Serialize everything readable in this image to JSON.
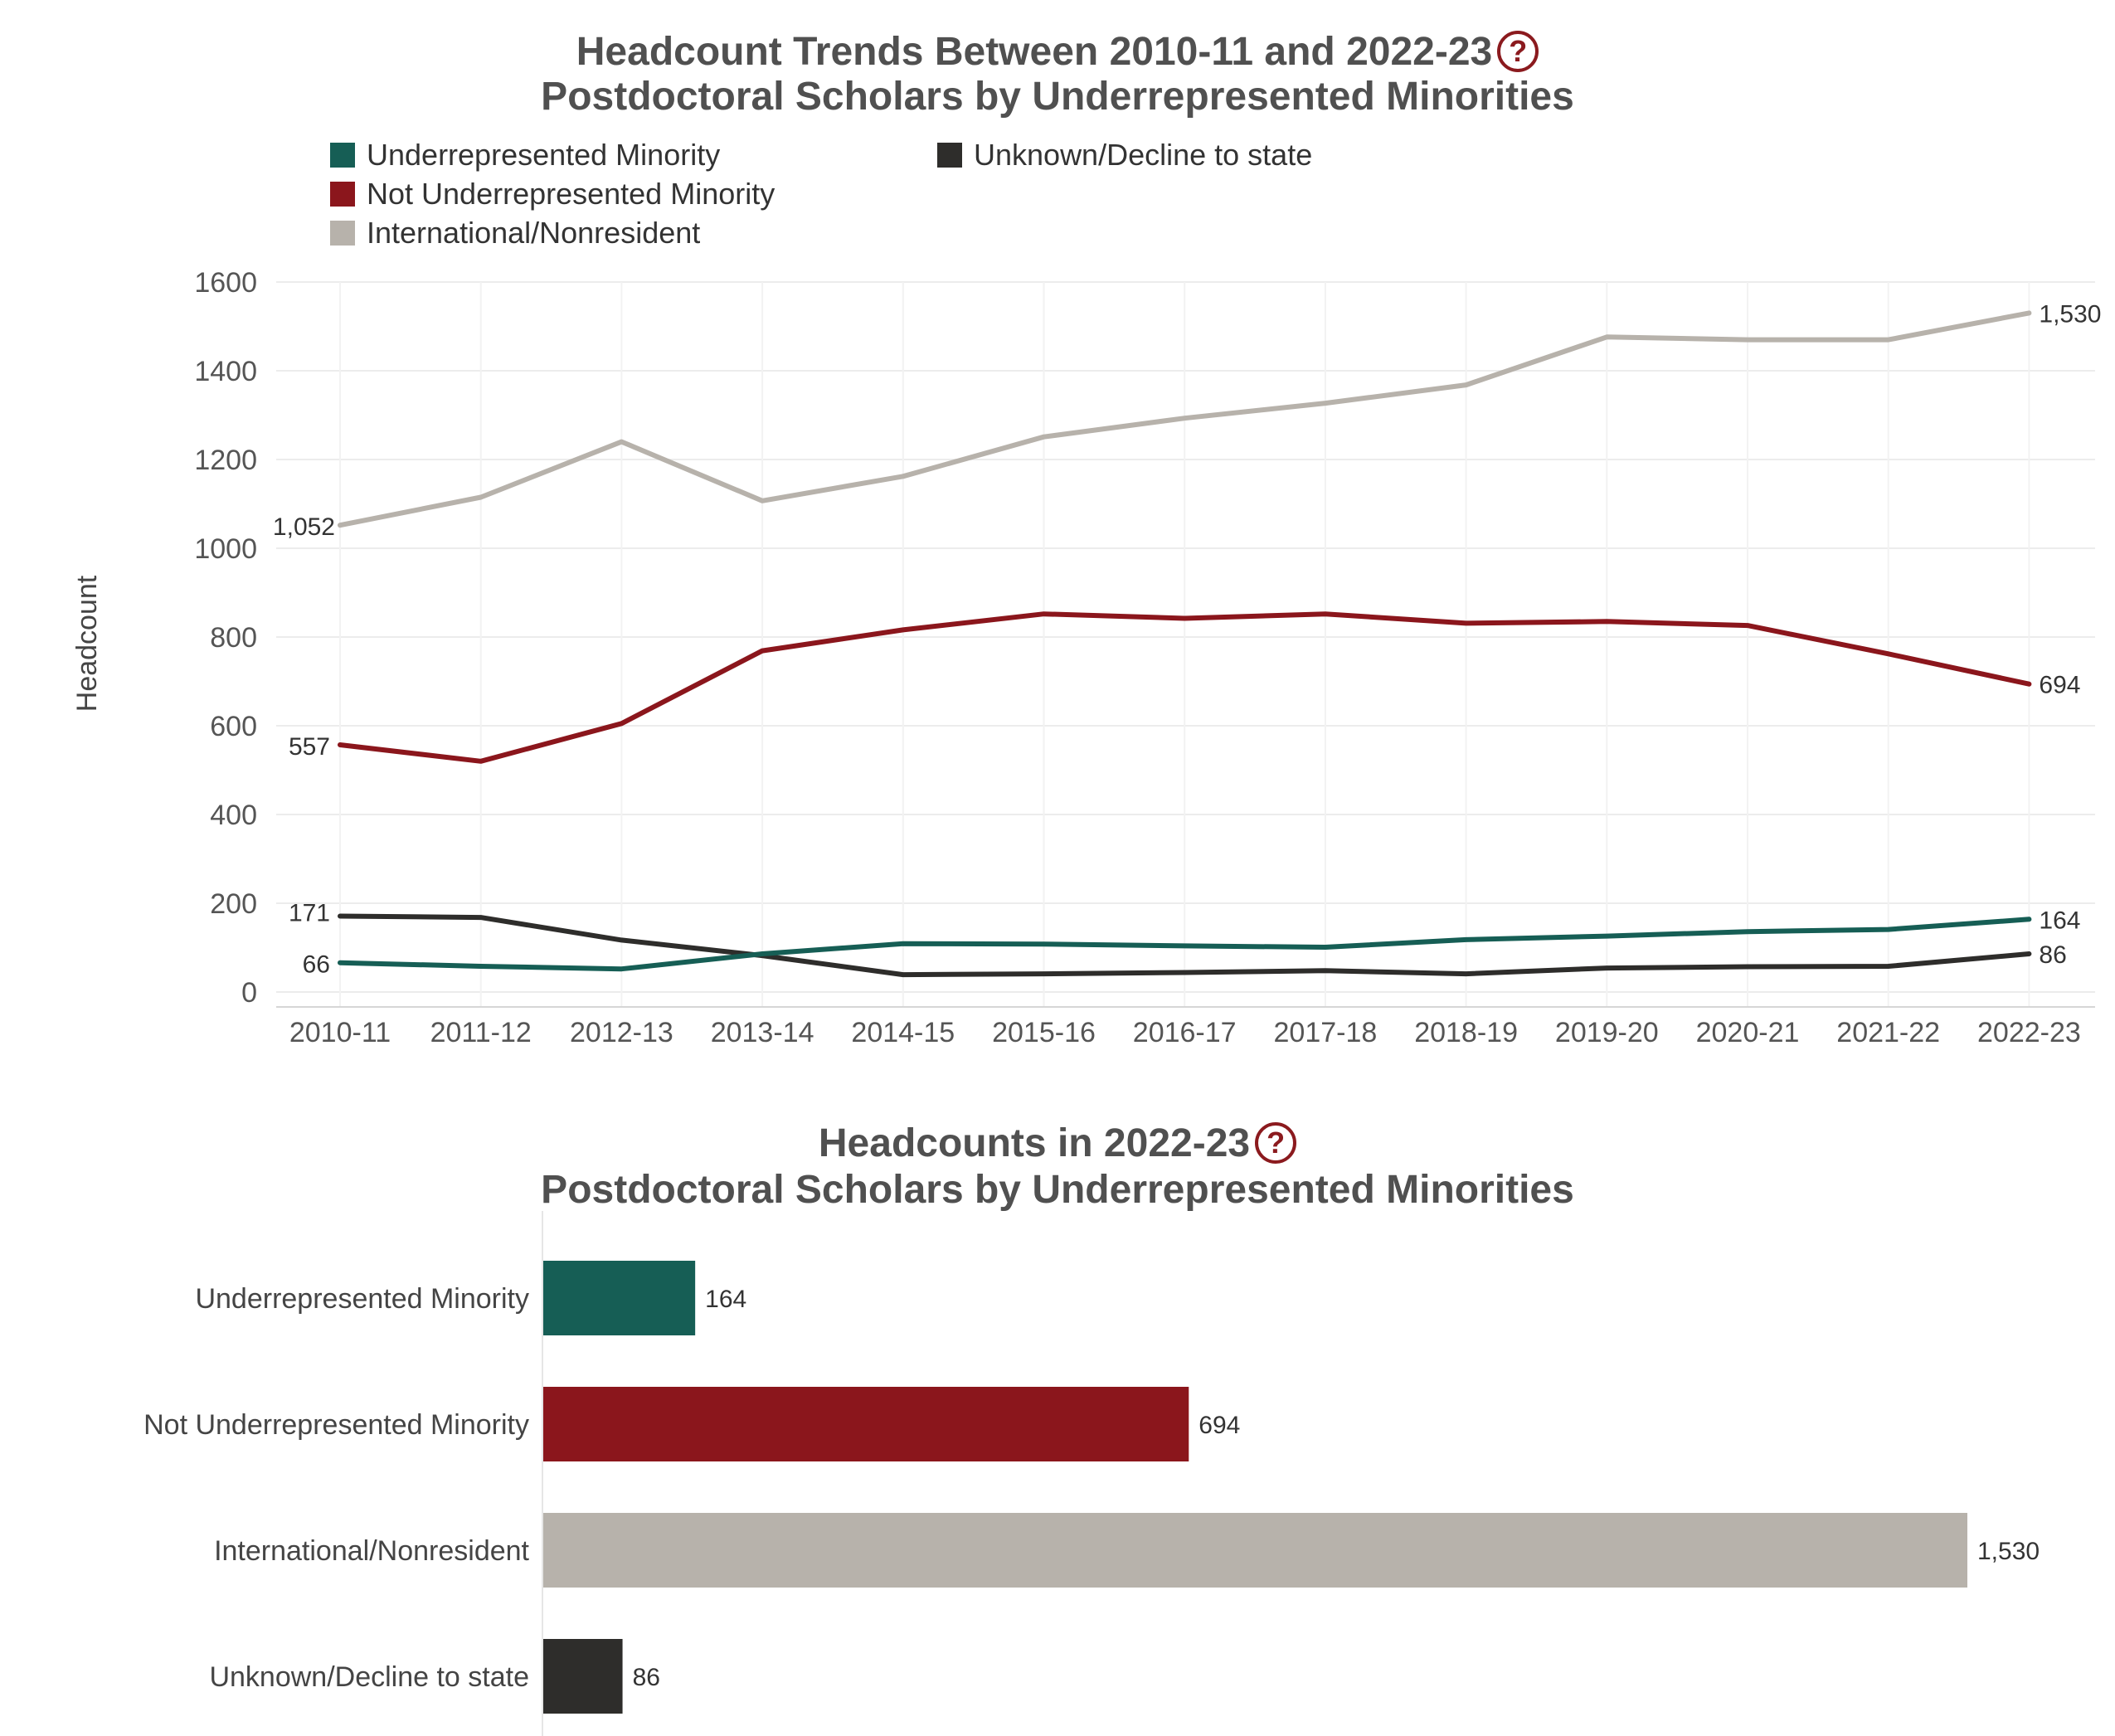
{
  "line_chart": {
    "title_line1": "Headcount Trends Between 2010-11 and 2022-23",
    "title_line2": "Postdoctoral Scholars by Underrepresented Minorities",
    "help_icon": "question-circle-icon"
  },
  "bar_chart": {
    "title_line1": "Headcounts in 2022-23",
    "title_line2": "Postdoctoral Scholars by Underrepresented Minorities",
    "help_icon": "question-circle-icon"
  },
  "colors": {
    "urm": "#165e55",
    "not_urm": "#8b161c",
    "intl": "#b7b2ab",
    "unknown": "#2e2d2b",
    "title": "#505050",
    "help": "#8b1a1e"
  },
  "chart_data": [
    {
      "type": "line",
      "title": "Headcount Trends Between 2010-11 and 2022-23 Postdoctoral Scholars by Underrepresented Minorities",
      "xlabel": "",
      "ylabel": "Headcount",
      "ylim": [
        0,
        1600
      ],
      "yticks": [
        "0",
        "200",
        "400",
        "600",
        "800",
        "1000",
        "1200",
        "1400",
        "1600"
      ],
      "grid": true,
      "legend": "top-left",
      "categories": [
        "2010-11",
        "2011-12",
        "2012-13",
        "2013-14",
        "2014-15",
        "2015-16",
        "2016-17",
        "2017-18",
        "2018-19",
        "2019-20",
        "2020-21",
        "2021-22",
        "2022-23"
      ],
      "series": [
        {
          "name": "Underrepresented Minority",
          "color": "#165e55",
          "values": [
            66,
            58,
            52,
            86,
            109,
            108,
            104,
            101,
            118,
            126,
            136,
            141,
            164
          ],
          "start_label": "66",
          "end_label": "164"
        },
        {
          "name": "Not Underrepresented Minority",
          "color": "#8b161c",
          "values": [
            557,
            520,
            605,
            769,
            816,
            852,
            842,
            852,
            831,
            835,
            826,
            762,
            694
          ],
          "start_label": "557",
          "end_label": "694"
        },
        {
          "name": "International/Nonresident",
          "color": "#b7b2ab",
          "values": [
            1052,
            1115,
            1240,
            1107,
            1162,
            1251,
            1293,
            1327,
            1368,
            1476,
            1470,
            1470,
            1530
          ],
          "start_label": "1,052",
          "end_label": "1,530"
        },
        {
          "name": "Unknown/Decline to state",
          "color": "#2e2d2b",
          "values": [
            171,
            168,
            117,
            82,
            39,
            41,
            44,
            48,
            41,
            54,
            57,
            58,
            86
          ],
          "start_label": "171",
          "end_label": "86"
        }
      ]
    },
    {
      "type": "bar",
      "orientation": "horizontal",
      "title": "Headcounts in 2022-23 Postdoctoral Scholars by Underrepresented Minorities",
      "categories": [
        "Underrepresented Minority",
        "Not Underrepresented Minority",
        "International/Nonresident",
        "Unknown/Decline to state"
      ],
      "values": [
        164,
        694,
        1530,
        86
      ],
      "labels": [
        "164",
        "694",
        "1,530",
        "86"
      ],
      "colors": [
        "#165e55",
        "#8b161c",
        "#b7b2ab",
        "#2e2d2b"
      ]
    }
  ]
}
